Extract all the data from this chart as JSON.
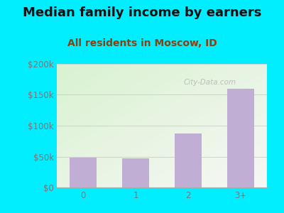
{
  "title": "Median family income by earners",
  "subtitle": "All residents in Moscow, ID",
  "categories": [
    "0",
    "1",
    "2",
    "3+"
  ],
  "values": [
    48000,
    47000,
    87000,
    160000
  ],
  "bar_color": "#c0aed4",
  "ylim": [
    0,
    200000
  ],
  "yticks": [
    0,
    50000,
    100000,
    150000,
    200000
  ],
  "ytick_labels": [
    "$0",
    "$50k",
    "$100k",
    "$150k",
    "$200k"
  ],
  "background_outer": "#00eeff",
  "title_fontsize": 13,
  "subtitle_fontsize": 10,
  "subtitle_color": "#8b4010",
  "title_color": "#111111",
  "tick_color": "#777777",
  "grid_color": "#cccccc",
  "watermark": "City-Data.com"
}
